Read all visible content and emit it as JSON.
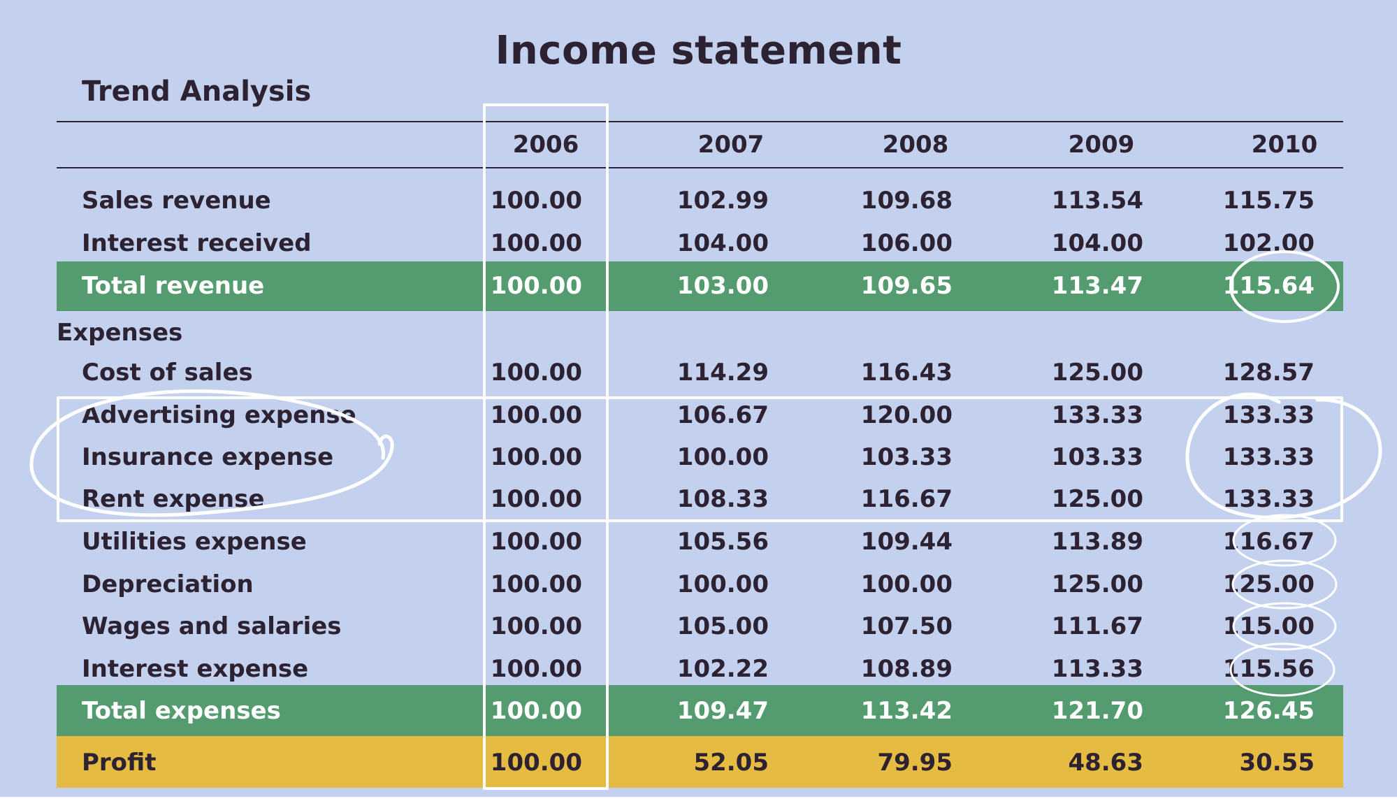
{
  "title": "Income statement",
  "subtitle": "Trend Analysis",
  "colors": {
    "background": "#c4d1ee",
    "total_band": "#549b70",
    "profit_band": "#e6bb42",
    "text": "#2c2231",
    "annotation": "#ffffff"
  },
  "table": {
    "years": [
      "2006",
      "2007",
      "2008",
      "2009",
      "2010"
    ],
    "rows": [
      {
        "label": "Sales revenue",
        "values": [
          "100.00",
          "102.99",
          "109.68",
          "113.54",
          "115.75"
        ]
      },
      {
        "label": "Interest received",
        "values": [
          "100.00",
          "104.00",
          "106.00",
          "104.00",
          "102.00"
        ]
      },
      {
        "label": "Total revenue",
        "values": [
          "100.00",
          "103.00",
          "109.65",
          "113.47",
          "115.64"
        ]
      },
      {
        "label": "Expenses",
        "values": []
      },
      {
        "label": "Cost of sales",
        "values": [
          "100.00",
          "114.29",
          "116.43",
          "125.00",
          "128.57"
        ]
      },
      {
        "label": "Advertising expense",
        "values": [
          "100.00",
          "106.67",
          "120.00",
          "133.33",
          "133.33"
        ]
      },
      {
        "label": "Insurance expense",
        "values": [
          "100.00",
          "100.00",
          "103.33",
          "103.33",
          "133.33"
        ]
      },
      {
        "label": "Rent expense",
        "values": [
          "100.00",
          "108.33",
          "116.67",
          "125.00",
          "133.33"
        ]
      },
      {
        "label": "Utilities expense",
        "values": [
          "100.00",
          "105.56",
          "109.44",
          "113.89",
          "116.67"
        ]
      },
      {
        "label": "Depreciation",
        "values": [
          "100.00",
          "100.00",
          "100.00",
          "125.00",
          "125.00"
        ]
      },
      {
        "label": "Wages and salaries",
        "values": [
          "100.00",
          "105.00",
          "107.50",
          "111.67",
          "115.00"
        ]
      },
      {
        "label": "Interest expense",
        "values": [
          "100.00",
          "102.22",
          "108.89",
          "113.33",
          "115.56"
        ]
      },
      {
        "label": "Total expenses",
        "values": [
          "100.00",
          "109.47",
          "113.42",
          "121.70",
          "126.45"
        ]
      },
      {
        "label": "Profit",
        "values": [
          "100.00",
          "52.05",
          "79.95",
          "48.63",
          "30.55"
        ]
      }
    ]
  }
}
